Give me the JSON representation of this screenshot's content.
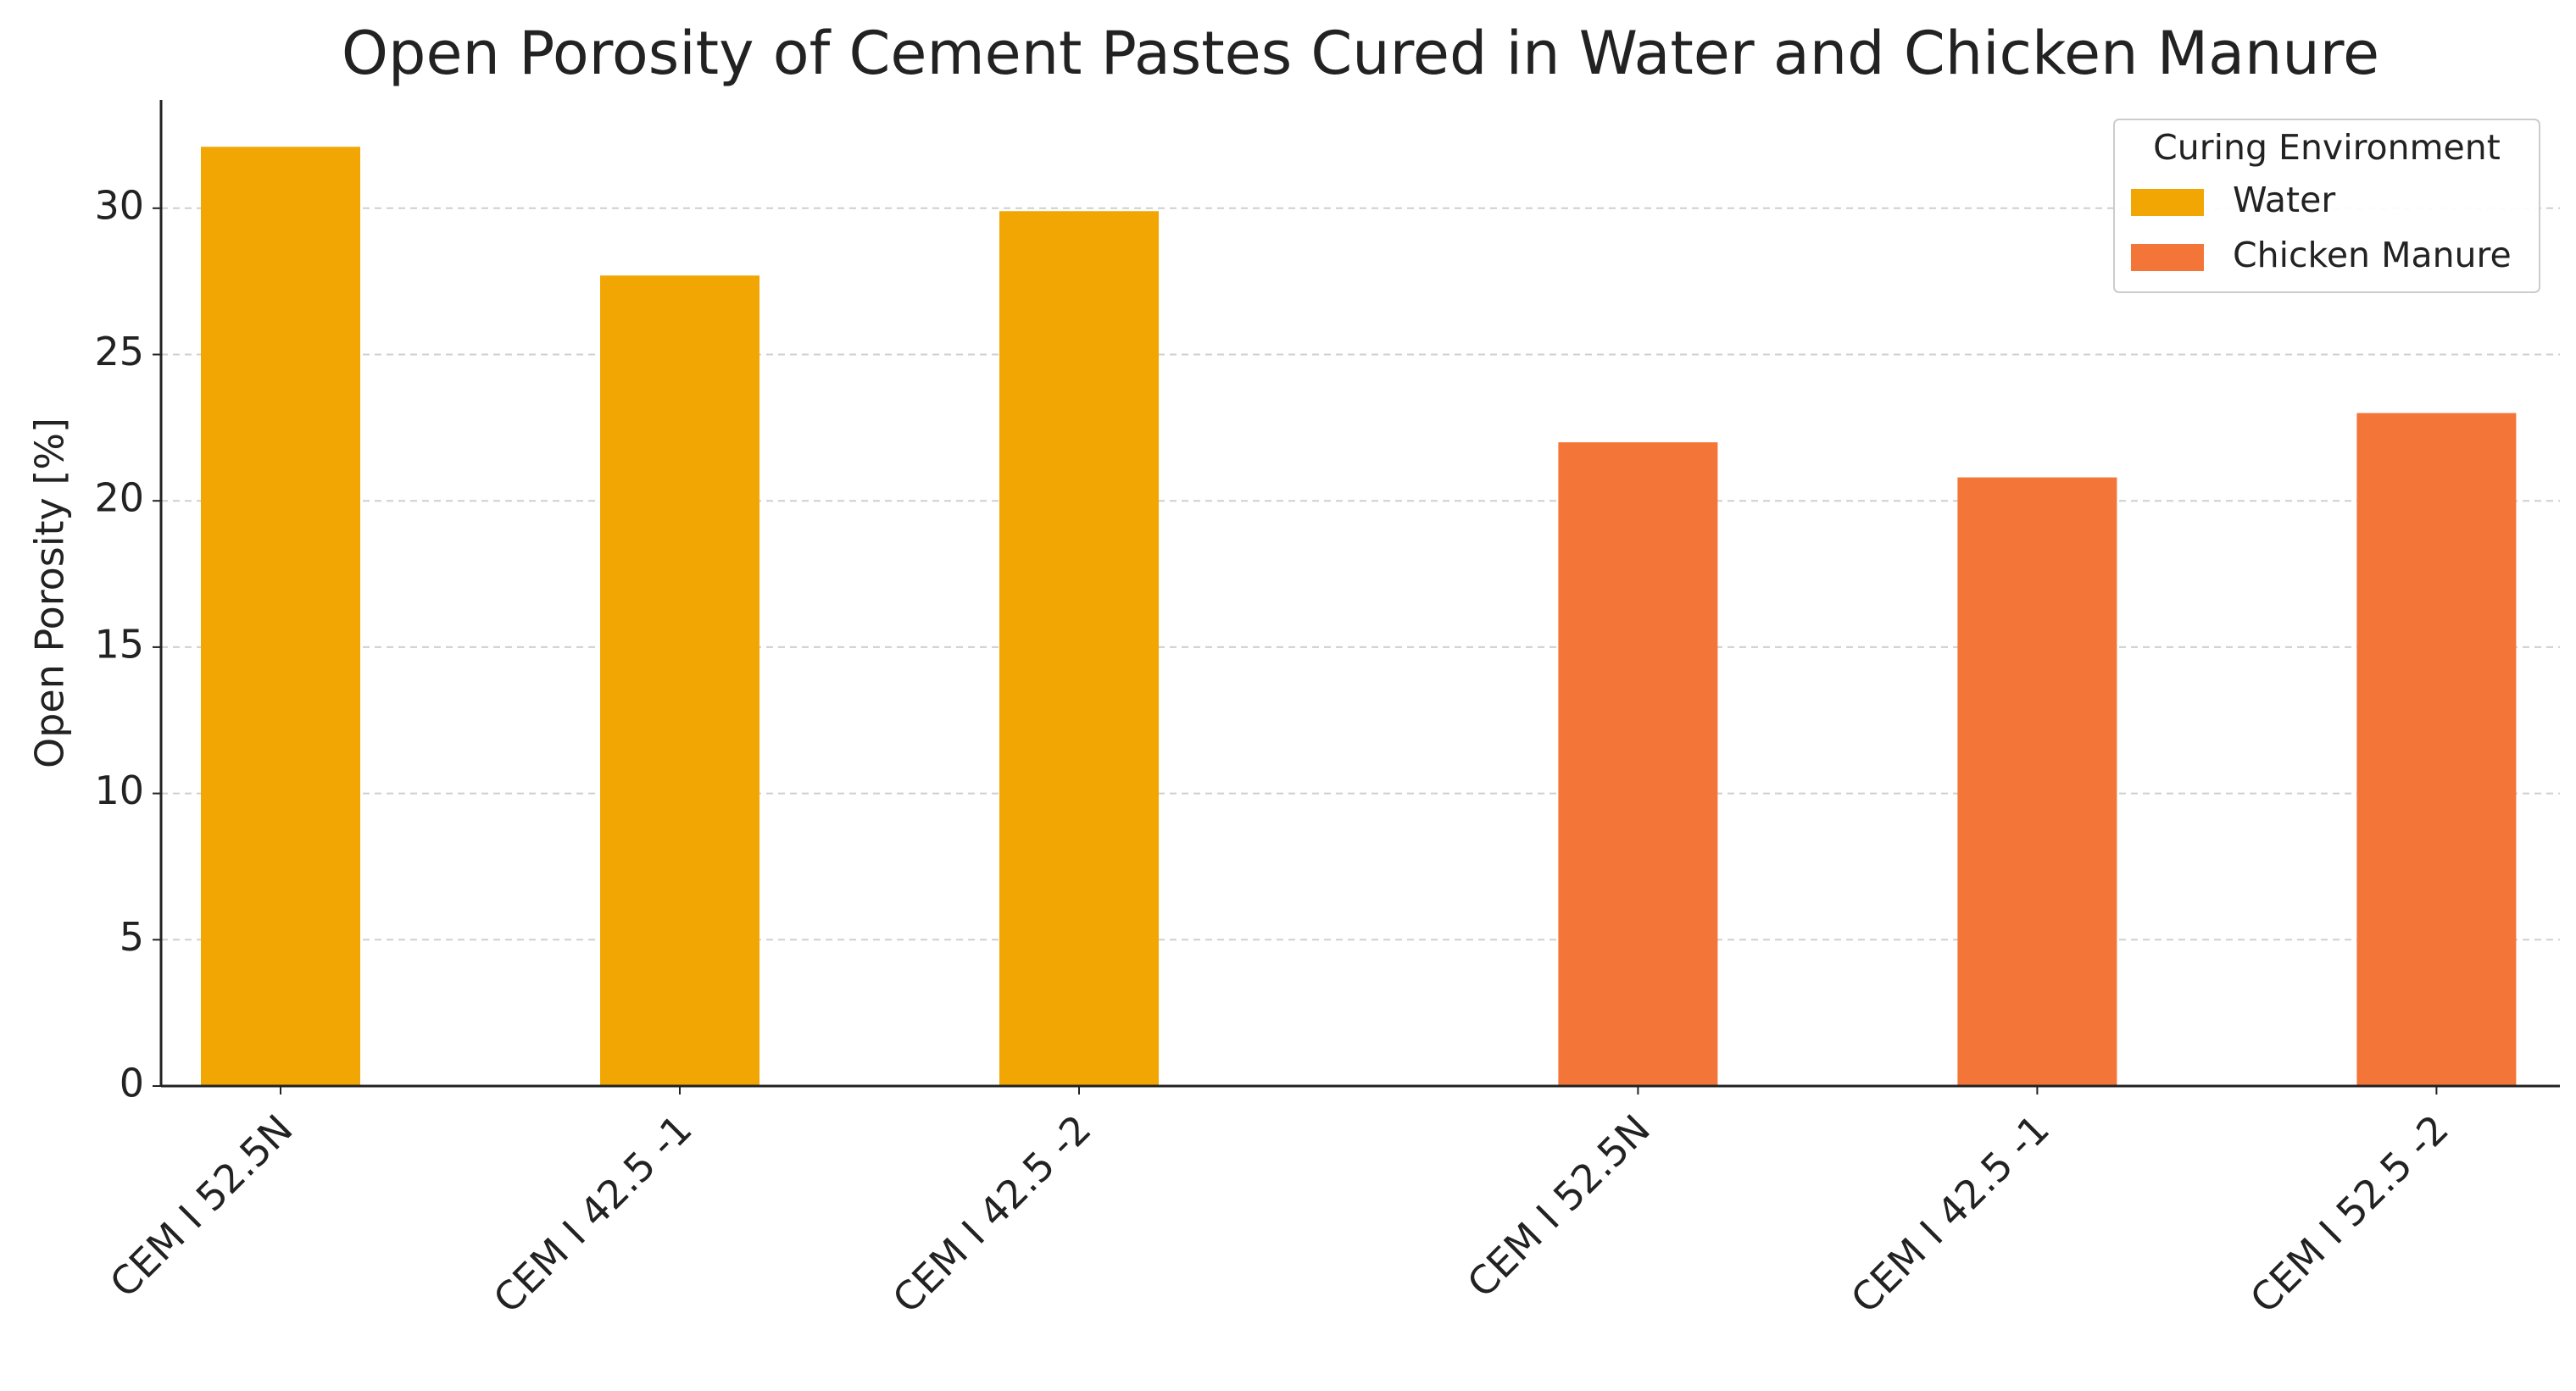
{
  "chart_data": {
    "type": "bar",
    "title": "Open Porosity of Cement Pastes Cured in Water and Chicken Manure",
    "y_label": "Open Porosity [%]",
    "categories": [
      "CEM I 52.5N",
      "CEM I 42.5 -1",
      "CEM I 42.5 -2",
      "CEM I 52.5N",
      "CEM I 42.5 -1",
      "CEM I 52.5 -2"
    ],
    "series": [
      {
        "name": "Water",
        "color": "#f2a603",
        "values": [
          32.1,
          27.7,
          29.9,
          null,
          null,
          null
        ]
      },
      {
        "name": "Chicken Manure",
        "color": "#f47538",
        "values": [
          null,
          null,
          null,
          22.0,
          20.8,
          23.0
        ]
      }
    ],
    "legend_title": "Curing Environment",
    "legend_position": "upper right",
    "ylim": [
      0,
      33.7
    ],
    "yticks": [
      0,
      5,
      10,
      15,
      20,
      25,
      30
    ],
    "grid": true
  }
}
